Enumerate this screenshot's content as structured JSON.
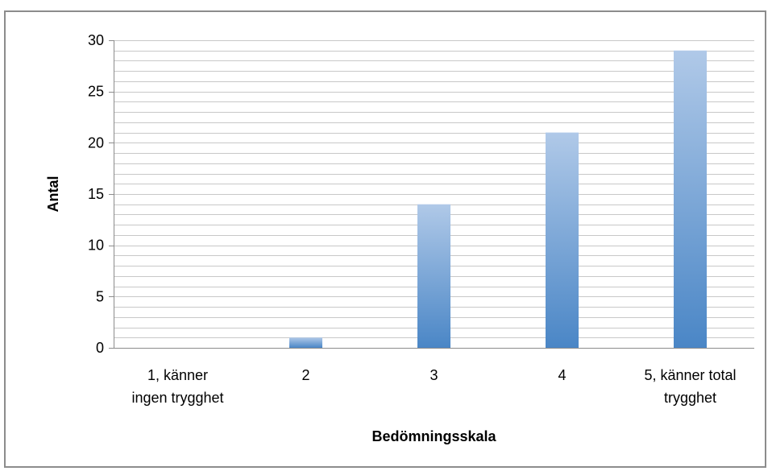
{
  "chart_data": {
    "type": "bar",
    "title": "",
    "xlabel": "Bedömningsskala",
    "ylabel": "Antal",
    "categories": [
      [
        "1, känner",
        "ingen trygghet"
      ],
      [
        "2"
      ],
      [
        "3"
      ],
      [
        "4"
      ],
      [
        "5, känner total",
        "trygghet"
      ]
    ],
    "values": [
      0,
      1,
      14,
      21,
      29
    ],
    "ylim": [
      0,
      30
    ],
    "major_ticks": [
      0,
      5,
      10,
      15,
      20,
      25,
      30
    ],
    "minor_step": 1,
    "grid": true,
    "legend": "none",
    "colors": {
      "bar_top": "#b0c9e8",
      "bar_bottom": "#4a86c6",
      "grid": "#c8c8c8",
      "axis": "#8c8c8c"
    }
  }
}
